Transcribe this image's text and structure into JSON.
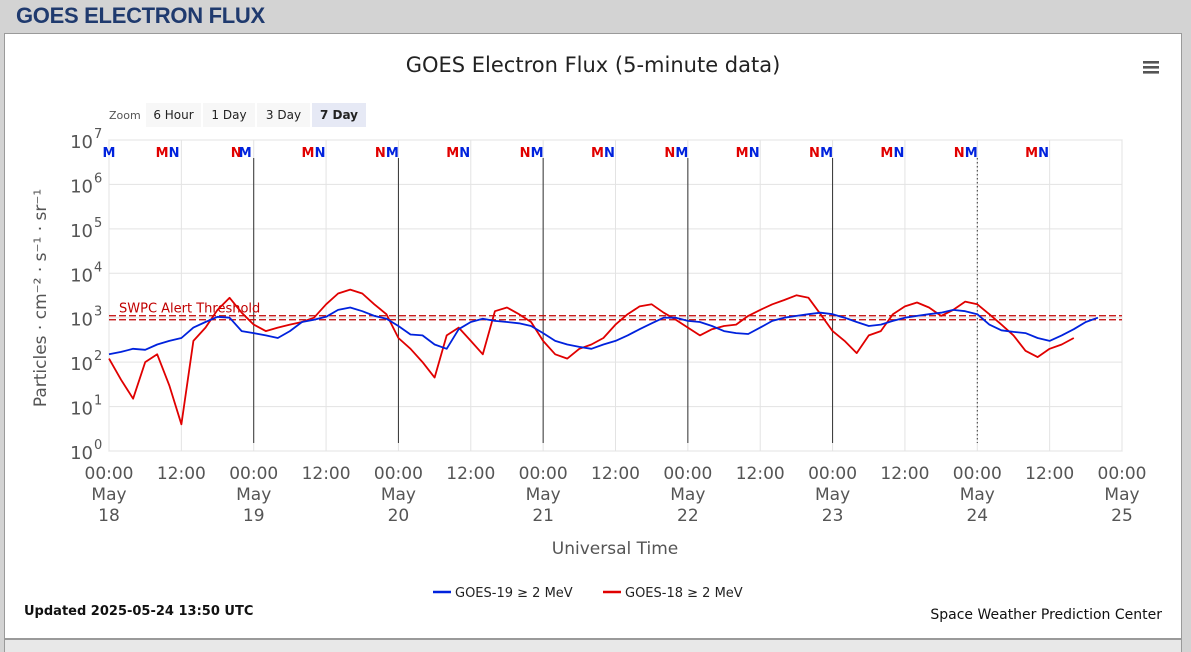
{
  "page": {
    "title": "GOES ELECTRON FLUX"
  },
  "chart_data": {
    "type": "line",
    "title": "GOES Electron Flux (5-minute data)",
    "xlabel": "Universal Time",
    "ylabel": "Particles · cm⁻² · s⁻¹ · sr⁻¹",
    "y_scale": "log",
    "ylim": [
      1,
      10000000
    ],
    "y_ticks": [
      {
        "value": 1,
        "base": "10",
        "exp": "0"
      },
      {
        "value": 10,
        "base": "10",
        "exp": "1"
      },
      {
        "value": 100,
        "base": "10",
        "exp": "2"
      },
      {
        "value": 1000,
        "base": "10",
        "exp": "3"
      },
      {
        "value": 10000,
        "base": "10",
        "exp": "4"
      },
      {
        "value": 100000,
        "base": "10",
        "exp": "5"
      },
      {
        "value": 1000000,
        "base": "10",
        "exp": "6"
      },
      {
        "value": 10000000,
        "base": "10",
        "exp": "7"
      }
    ],
    "x_range_days": [
      "2025-05-18 00:00",
      "2025-05-25 00:00"
    ],
    "x_ticks": [
      {
        "line1": "00:00",
        "line2": "May",
        "line3": "18"
      },
      {
        "line1": "12:00",
        "line2": "",
        "line3": ""
      },
      {
        "line1": "00:00",
        "line2": "May",
        "line3": "19"
      },
      {
        "line1": "12:00",
        "line2": "",
        "line3": ""
      },
      {
        "line1": "00:00",
        "line2": "May",
        "line3": "20"
      },
      {
        "line1": "12:00",
        "line2": "",
        "line3": ""
      },
      {
        "line1": "00:00",
        "line2": "May",
        "line3": "21"
      },
      {
        "line1": "12:00",
        "line2": "",
        "line3": ""
      },
      {
        "line1": "00:00",
        "line2": "May",
        "line3": "22"
      },
      {
        "line1": "12:00",
        "line2": "",
        "line3": ""
      },
      {
        "line1": "00:00",
        "line2": "May",
        "line3": "23"
      },
      {
        "line1": "12:00",
        "line2": "",
        "line3": ""
      },
      {
        "line1": "00:00",
        "line2": "May",
        "line3": "24"
      },
      {
        "line1": "12:00",
        "line2": "",
        "line3": ""
      },
      {
        "line1": "00:00",
        "line2": "May",
        "line3": "25"
      }
    ],
    "threshold": {
      "label": "SWPC Alert Threshold",
      "value": 1000,
      "color": "#c00000"
    },
    "series": [
      {
        "name": "GOES-19 ≥ 2 MeV",
        "color": "#0022dd",
        "x_hours": [
          0,
          2,
          4,
          6,
          8,
          10,
          12,
          14,
          16,
          18,
          20,
          22,
          24,
          26,
          28,
          30,
          32,
          34,
          36,
          38,
          40,
          42,
          44,
          46,
          48,
          50,
          52,
          54,
          56,
          58,
          60,
          62,
          64,
          66,
          68,
          70,
          72,
          74,
          76,
          78,
          80,
          82,
          84,
          86,
          88,
          90,
          92,
          94,
          96,
          98,
          100,
          102,
          104,
          106,
          108,
          110,
          112,
          114,
          116,
          118,
          120,
          122,
          124,
          126,
          128,
          130,
          132,
          134,
          136,
          138,
          140,
          142,
          144,
          146,
          148,
          150,
          152,
          154,
          156,
          158,
          160,
          162,
          164,
          166,
          168
        ],
        "values": [
          150,
          170,
          200,
          190,
          250,
          300,
          350,
          600,
          800,
          1050,
          1000,
          500,
          450,
          400,
          350,
          500,
          800,
          900,
          1050,
          1500,
          1700,
          1400,
          1100,
          950,
          650,
          420,
          400,
          250,
          200,
          550,
          800,
          950,
          850,
          800,
          750,
          650,
          450,
          300,
          250,
          220,
          200,
          250,
          300,
          400,
          550,
          750,
          1000,
          1000,
          850,
          800,
          650,
          500,
          450,
          430,
          600,
          850,
          1000,
          1100,
          1200,
          1300,
          1200,
          1000,
          800,
          650,
          700,
          850,
          1000,
          1100,
          1200,
          1300,
          1500,
          1400,
          1200,
          700,
          520,
          480,
          450,
          350,
          300,
          400,
          550,
          800,
          1000,
          null,
          null
        ]
      },
      {
        "name": "GOES-18 ≥ 2 MeV",
        "color": "#e00000",
        "x_hours": [
          0,
          2,
          4,
          6,
          8,
          10,
          12,
          14,
          16,
          18,
          20,
          22,
          24,
          26,
          28,
          30,
          32,
          34,
          36,
          38,
          40,
          42,
          44,
          46,
          48,
          50,
          52,
          54,
          56,
          58,
          60,
          62,
          64,
          66,
          68,
          70,
          72,
          74,
          76,
          78,
          80,
          82,
          84,
          86,
          88,
          90,
          92,
          94,
          96,
          98,
          100,
          102,
          104,
          106,
          108,
          110,
          112,
          114,
          116,
          118,
          120,
          122,
          124,
          126,
          128,
          130,
          132,
          134,
          136,
          138,
          140,
          142,
          144,
          146,
          148,
          150,
          152,
          154,
          156,
          158,
          160,
          162,
          164,
          166,
          168
        ],
        "values": [
          120,
          40,
          15,
          100,
          150,
          30,
          4,
          300,
          600,
          1500,
          2800,
          1300,
          700,
          500,
          600,
          700,
          800,
          1000,
          2000,
          3500,
          4300,
          3500,
          2000,
          1200,
          350,
          200,
          100,
          45,
          400,
          600,
          300,
          150,
          1400,
          1700,
          1200,
          800,
          300,
          150,
          120,
          200,
          250,
          350,
          700,
          1200,
          1800,
          2000,
          1300,
          900,
          600,
          400,
          550,
          650,
          700,
          1100,
          1500,
          2000,
          2500,
          3200,
          2800,
          1200,
          500,
          300,
          160,
          400,
          500,
          1200,
          1800,
          2200,
          1700,
          1100,
          1500,
          2300,
          2000,
          1200,
          700,
          400,
          180,
          130,
          200,
          250,
          350,
          null,
          null,
          null,
          null
        ]
      }
    ],
    "top_markers_label_note": "M/N noon-midnight markers at top of plot",
    "top_markers": [
      {
        "hour": 0,
        "text": "M",
        "color": "#0022dd"
      },
      {
        "hour": 8.8,
        "text": "M",
        "color": "#e00000"
      },
      {
        "hour": 10.8,
        "text": "N",
        "color": "#0022dd"
      },
      {
        "hour": 21.1,
        "text": "N",
        "color": "#e00000"
      },
      {
        "hour": 22.6,
        "text": "M",
        "color": "#0022dd"
      },
      {
        "hour": 33,
        "text": "M",
        "color": "#e00000"
      },
      {
        "hour": 35,
        "text": "N",
        "color": "#0022dd"
      },
      {
        "hour": 45,
        "text": "N",
        "color": "#e00000"
      },
      {
        "hour": 47,
        "text": "M",
        "color": "#0022dd"
      },
      {
        "hour": 57,
        "text": "M",
        "color": "#e00000"
      },
      {
        "hour": 59,
        "text": "N",
        "color": "#0022dd"
      },
      {
        "hour": 69,
        "text": "N",
        "color": "#e00000"
      },
      {
        "hour": 71,
        "text": "M",
        "color": "#0022dd"
      },
      {
        "hour": 81,
        "text": "M",
        "color": "#e00000"
      },
      {
        "hour": 83,
        "text": "N",
        "color": "#0022dd"
      },
      {
        "hour": 93,
        "text": "N",
        "color": "#e00000"
      },
      {
        "hour": 95,
        "text": "M",
        "color": "#0022dd"
      },
      {
        "hour": 105,
        "text": "M",
        "color": "#e00000"
      },
      {
        "hour": 107,
        "text": "N",
        "color": "#0022dd"
      },
      {
        "hour": 117,
        "text": "N",
        "color": "#e00000"
      },
      {
        "hour": 119,
        "text": "M",
        "color": "#0022dd"
      },
      {
        "hour": 129,
        "text": "M",
        "color": "#e00000"
      },
      {
        "hour": 131,
        "text": "N",
        "color": "#0022dd"
      },
      {
        "hour": 141,
        "text": "N",
        "color": "#e00000"
      },
      {
        "hour": 143,
        "text": "M",
        "color": "#0022dd"
      },
      {
        "hour": 153,
        "text": "M",
        "color": "#e00000"
      },
      {
        "hour": 155,
        "text": "N",
        "color": "#0022dd"
      }
    ],
    "day_lines_hours": [
      24,
      48,
      72,
      96,
      120
    ],
    "dotted_line_hour": 144,
    "grid": true,
    "legend_position": "bottom-center"
  },
  "zoom": {
    "label": "Zoom",
    "buttons": [
      "6 Hour",
      "1 Day",
      "3 Day",
      "7 Day"
    ],
    "selected": "7 Day"
  },
  "footer": {
    "updated": "Updated 2025-05-24 13:50 UTC",
    "credit": "Space Weather Prediction Center"
  },
  "menu": {
    "icon": "hamburger-menu-icon"
  }
}
